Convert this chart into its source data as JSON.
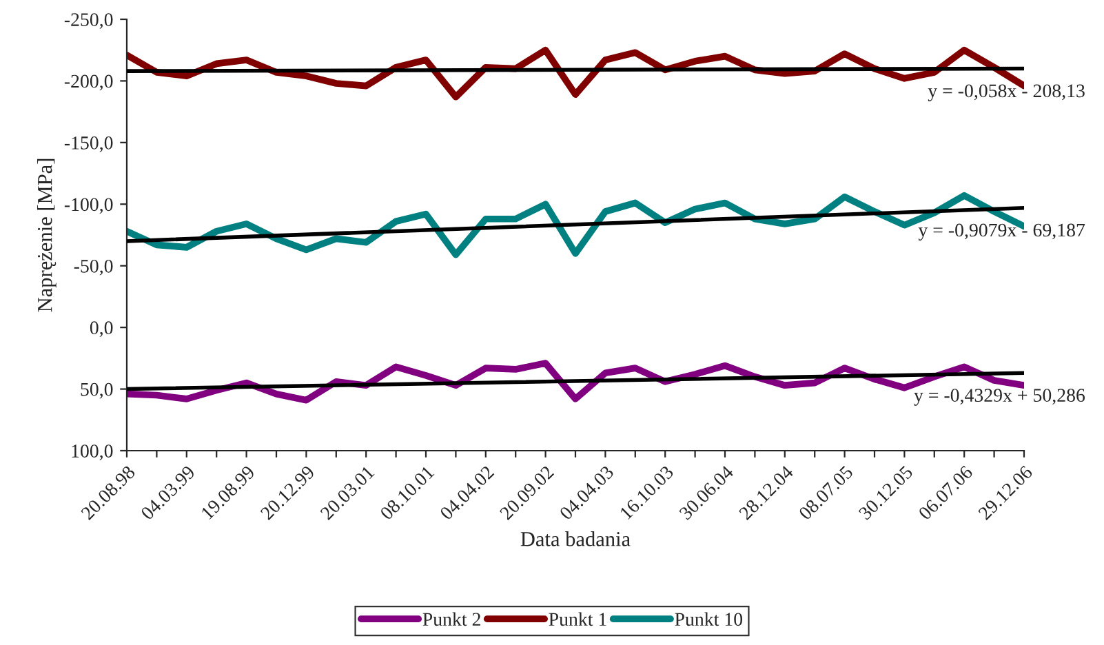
{
  "chart_data": {
    "type": "line",
    "xlabel": "Data badania",
    "ylabel": "Naprężenie [MPa]",
    "categories": [
      "20.08.98",
      null,
      "04.03.99",
      null,
      "19.08.99",
      null,
      "20.12.99",
      null,
      "20.03.01",
      null,
      "08.10.01",
      null,
      "04.04.02",
      null,
      "20.09.02",
      null,
      "04.04.03",
      null,
      "16.10.03",
      null,
      "30.06.04",
      null,
      "28.12.04",
      null,
      "08.07.05",
      null,
      "30.12.05",
      null,
      "06.07.06",
      null,
      "29.12.06"
    ],
    "series": [
      {
        "name": "Punkt 2",
        "color": "#800080",
        "values": [
          54,
          55,
          58,
          51,
          45,
          54,
          59,
          44,
          47,
          32,
          39,
          47,
          33,
          34,
          29,
          58,
          37,
          33,
          44,
          38,
          31,
          40,
          47,
          45,
          33,
          42,
          49,
          40,
          32,
          43,
          47
        ]
      },
      {
        "name": "Punkt 1",
        "color": "#800000",
        "values": [
          -221,
          -207,
          -204,
          -214,
          -217,
          -207,
          -204,
          -198,
          -196,
          -211,
          -217,
          -187,
          -211,
          -210,
          -225,
          -189,
          -217,
          -223,
          -209,
          -216,
          -220,
          -209,
          -206,
          -208,
          -222,
          -210,
          -202,
          -207,
          -225,
          -211,
          -196
        ]
      },
      {
        "name": "Punkt 10",
        "color": "#008080",
        "values": [
          -78,
          -67,
          -65,
          -78,
          -84,
          -72,
          -63,
          -72,
          -69,
          -86,
          -92,
          -59,
          -88,
          -88,
          -100,
          -60,
          -94,
          -101,
          -85,
          -96,
          -101,
          -88,
          -84,
          -88,
          -106,
          -94,
          -83,
          -93,
          -107,
          -94,
          -82
        ]
      },
      {
        "type": "line",
        "color": "#000000",
        "x": [
          "20.08.98",
          "29.12.06"
        ],
        "values": [
          -208,
          -210
        ]
      },
      {
        "type": "line",
        "color": "#000000",
        "x": [
          "20.08.98",
          "29.12.06"
        ],
        "values": [
          -70,
          -97
        ]
      },
      {
        "type": "line",
        "color": "#000000",
        "x": [
          "20.08.98",
          "29.12.06"
        ],
        "values": [
          50,
          37
        ]
      }
    ],
    "annotations": [
      {
        "text": "y = -0,058x - 208,13",
        "x": "29.12.06",
        "y": -210
      },
      {
        "text": "y = -0,9079x - 69,187",
        "x": "29.12.06",
        "y": -97
      },
      {
        "text": "y = -0,4329x + 50,286",
        "x": "29.12.06",
        "y": 37
      }
    ],
    "ylim": [
      100,
      -250
    ],
    "yticks": [
      {
        "value": -250,
        "label": "-250,0"
      },
      {
        "value": -200,
        "label": "-200,0"
      },
      {
        "value": -150,
        "label": "-150,0"
      },
      {
        "value": -100,
        "label": "-100,0"
      },
      {
        "value": -50,
        "label": "-50,0"
      },
      {
        "value": 0,
        "label": "0,0"
      },
      {
        "value": 50,
        "label": "50,0"
      },
      {
        "value": 100,
        "label": "100,0"
      }
    ],
    "grid": false,
    "legend": "bottom",
    "marker": "none",
    "line_style": "solid"
  }
}
